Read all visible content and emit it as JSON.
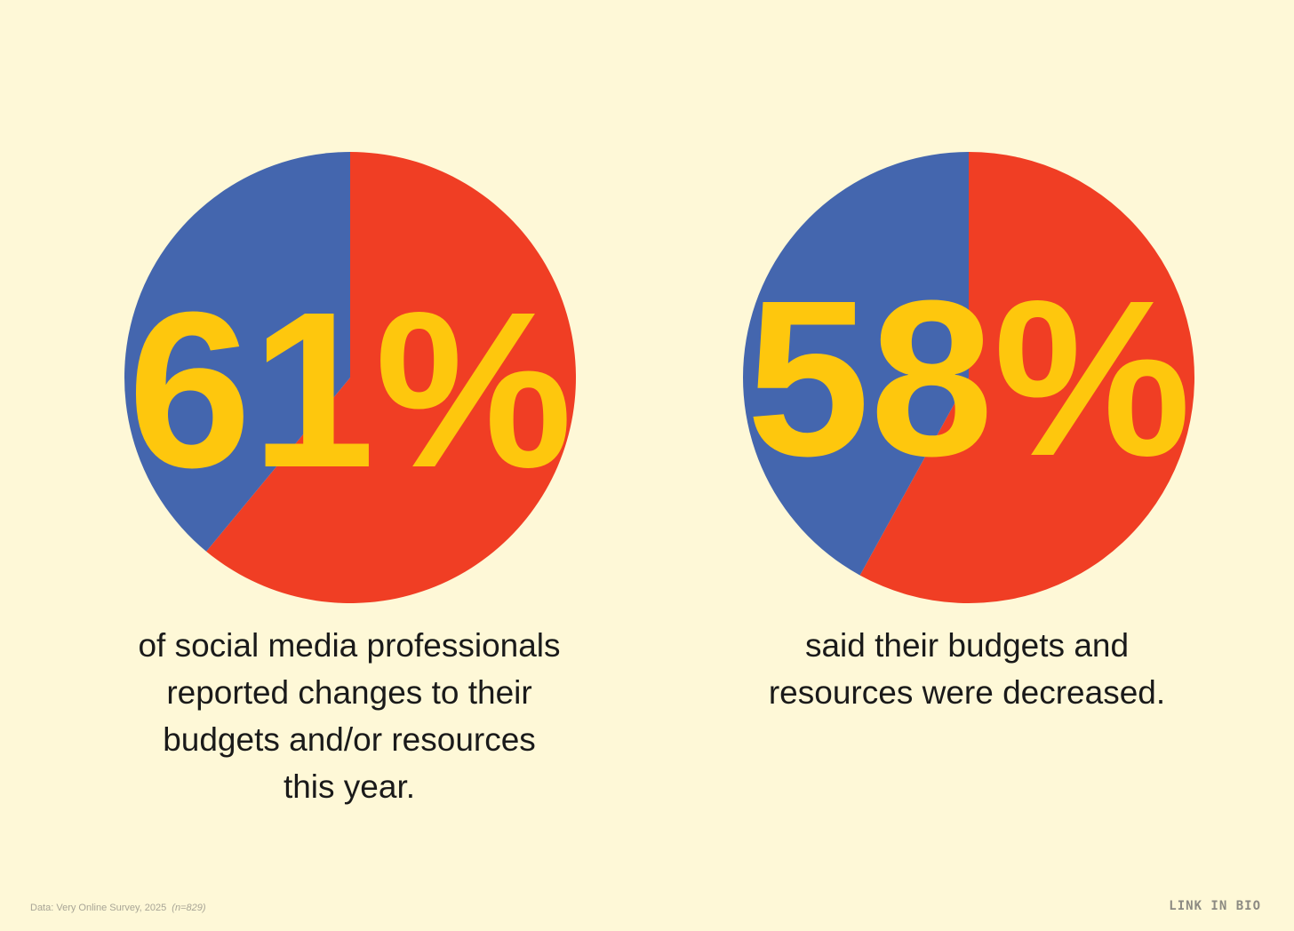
{
  "colors": {
    "background": "#FEF8D7",
    "primary_slice": "#F03E24",
    "other_slice": "#4466AE",
    "percent_text": "#FEC70D"
  },
  "chart_data": [
    {
      "type": "pie",
      "big_label": "61%",
      "slices": [
        {
          "value": 61,
          "color": "#F03E24"
        },
        {
          "value": 39,
          "color": "#4466AE"
        }
      ],
      "caption_lines": [
        "of social media professionals",
        "reported changes to their",
        "budgets and/or resources",
        "this year."
      ]
    },
    {
      "type": "pie",
      "big_label": "58%",
      "slices": [
        {
          "value": 58,
          "color": "#F03E24"
        },
        {
          "value": 42,
          "color": "#4466AE"
        }
      ],
      "caption_lines": [
        "said their budgets and",
        "resources were decreased."
      ]
    }
  ],
  "footer": {
    "source": "Data: Very Online Survey, 2025",
    "sample": "(n=829)",
    "brand": "LINK IN BIO"
  }
}
